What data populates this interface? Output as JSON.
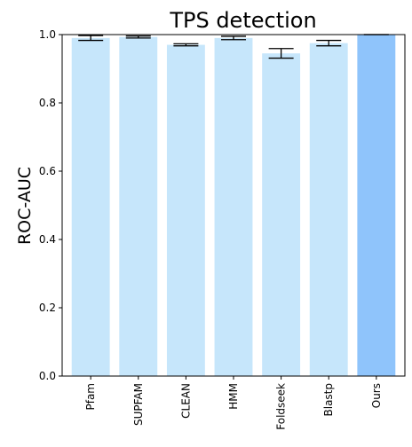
{
  "chart_data": {
    "type": "bar",
    "title": "TPS detection",
    "xlabel": "",
    "ylabel": "ROC-AUC",
    "ylim": [
      0,
      1.0
    ],
    "yticks": [
      "0.0",
      "0.2",
      "0.4",
      "0.6",
      "0.8",
      "1.0"
    ],
    "grid": false,
    "categories": [
      "Pfam",
      "SUPFAM",
      "CLEAN",
      "HMM",
      "Foldseek",
      "Blastp",
      "Ours"
    ],
    "values": [
      0.99,
      0.993,
      0.97,
      0.99,
      0.945,
      0.975,
      1.0
    ],
    "errors": [
      0.007,
      0.003,
      0.003,
      0.005,
      0.014,
      0.008,
      0.0
    ],
    "colors": [
      "#c6e6fb",
      "#c6e6fb",
      "#c6e6fb",
      "#c6e6fb",
      "#c6e6fb",
      "#c6e6fb",
      "#8fc4fb"
    ]
  }
}
